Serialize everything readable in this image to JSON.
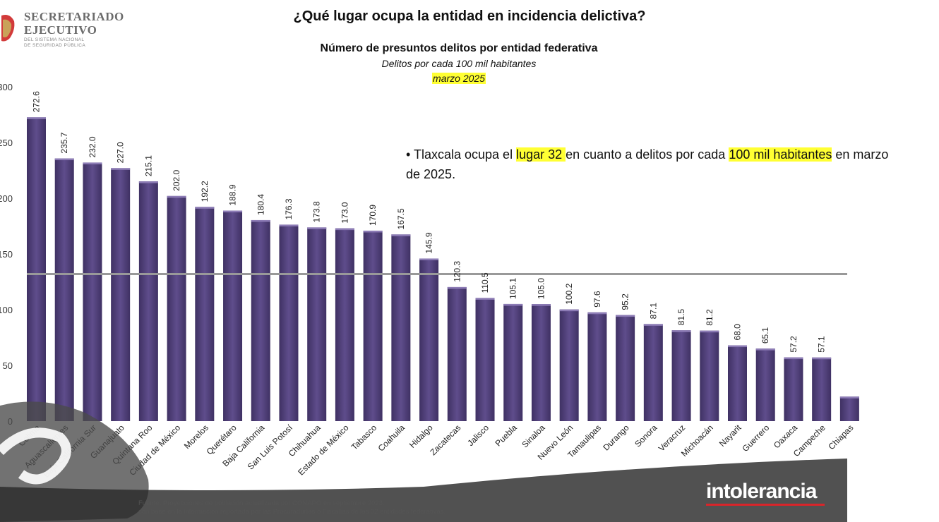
{
  "logo": {
    "line1": "SECRETARIADO",
    "line2": "EJECUTIVO",
    "line3": "DEL SISTEMA NACIONAL",
    "line4": "DE SEGURIDAD PÚBLICA"
  },
  "header": {
    "title": "¿Qué lugar ocupa la entidad en incidencia delictiva?",
    "subtitle": "Número de presuntos delitos por entidad federativa",
    "unit": "Delitos por cada 100 mil habitantes",
    "period": "marzo 2025"
  },
  "note": {
    "part1": "Tlaxcala ocupa el ",
    "highlight1": "lugar 32 ",
    "part2": "en cuanto a delitos por cada ",
    "highlight2": "100 mil habitantes",
    "part3": " en marzo de 2025."
  },
  "footnote": {
    "line1": "Fuente: Proyecciones de población actualizada por CONAPO en septiembre 2023.",
    "line2": "con base en la información reportada por las Procuradurías o Fiscalías de las 32 entidades federativas."
  },
  "watermark": {
    "text": "intolerancia"
  },
  "colors": {
    "bar": "#5b4a86",
    "average_line": "#999999",
    "highlight": "#ffff33",
    "brand_red": "#d9252a"
  },
  "chart_data": {
    "type": "bar",
    "categories": [
      "Colima",
      "Aguascalientes",
      "Baja California Sur",
      "Guanajuato",
      "Quintana Roo",
      "Ciudad de México",
      "Morelos",
      "Querétaro",
      "Baja California",
      "San Luis Potosí",
      "Chihuahua",
      "Estado de México",
      "Tabasco",
      "Coahuila",
      "Hidalgo",
      "Zacatecas",
      "Jalisco",
      "Puebla",
      "Sinaloa",
      "Nuevo León",
      "Tamaulipas",
      "Durango",
      "Sonora",
      "Veracruz",
      "Michoacán",
      "Nayarit",
      "Guerrero",
      "Oaxaca",
      "Campeche",
      "Chiapas"
    ],
    "values": [
      272.6,
      235.7,
      232.0,
      227.0,
      215.1,
      202.0,
      192.2,
      188.9,
      180.4,
      176.3,
      173.8,
      173.0,
      170.9,
      167.5,
      145.9,
      120.3,
      110.5,
      105.1,
      105.0,
      100.2,
      97.6,
      95.2,
      87.1,
      81.5,
      81.2,
      68.0,
      65.1,
      57.2,
      57.1,
      22.0
    ],
    "value_labels": [
      "272.6",
      "235.7",
      "232.0",
      "227.0",
      "215.1",
      "202.0",
      "192.2",
      "188.9",
      "180.4",
      "176.3",
      "173.8",
      "173.0",
      "170.9",
      "167.5",
      "145.9",
      "120.3",
      "110.5",
      "105.1",
      "105.0",
      "100.2",
      "97.6",
      "95.2",
      "87.1",
      "81.5",
      "81.2",
      "68.0",
      "65.1",
      "57.2",
      "57.1",
      ""
    ],
    "yticks": [
      "0",
      "50",
      "100",
      "150",
      "200",
      "250",
      "300"
    ],
    "ylim": [
      0,
      300
    ],
    "average_line_value": 132,
    "title": "Número de presuntos delitos por entidad federativa"
  }
}
